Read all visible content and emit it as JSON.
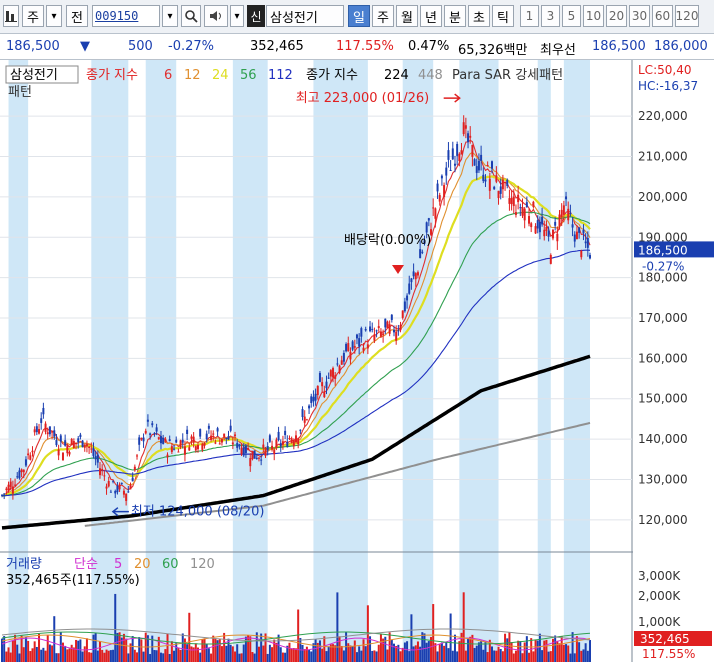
{
  "toolbar": {
    "icon_left": "chart-icon",
    "market_select": "주",
    "market_dropdown": "▾",
    "prev_label": "전",
    "stock_code": "009150",
    "search_icon": "search-icon",
    "sound_icon": "speaker-icon",
    "credit_badge": "신",
    "stock_name": "삼성전기",
    "periods": [
      "일",
      "주",
      "월",
      "년",
      "분",
      "초",
      "틱"
    ],
    "selected_period": "일",
    "intervals": [
      "1",
      "3",
      "5",
      "10",
      "20",
      "30",
      "60",
      "120"
    ]
  },
  "quote": {
    "price": "186,500",
    "direction_icon": "▼",
    "change": "500",
    "change_pct": "-0.27%",
    "volume": "352,465",
    "volume_ratio": "117.55%",
    "turnover": "0.47%",
    "amount": "65,326백만",
    "best_ask_label": "최우선",
    "best_ask": "186,500",
    "best_bid": "186,000"
  },
  "price_panel": {
    "title": "삼성전기",
    "ma_label": "종가 지수",
    "ma_periods": [
      "6",
      "12",
      "24",
      "56",
      "112"
    ],
    "ma_colors": [
      "#e03030",
      "#e09030",
      "#dede20",
      "#30a050",
      "#2030c0"
    ],
    "ma2_label": "종가 지수",
    "ma2_periods": [
      "224",
      "448"
    ],
    "ma2_colors": [
      "#000000",
      "#909090"
    ],
    "sar_label": "Para SAR 강세패턴",
    "sar_line2": "패턴",
    "lc": "LC:50,40",
    "hc": "HC:-16,37",
    "high_annotation": "최고 223,000 (01/26)",
    "low_annotation": "최저 124,000 (08/20)",
    "dividend_annotation": "배당락(0.00%)",
    "y_ticks": [
      "220,000",
      "210,000",
      "200,000",
      "190,000",
      "180,000",
      "170,000",
      "160,000",
      "150,000",
      "140,000",
      "130,000",
      "120,000"
    ],
    "current_price_label": "186,500",
    "current_change_label": "-0.27%"
  },
  "volume_panel": {
    "title": "거래량",
    "ma_label": "단순",
    "ma_periods": [
      "5",
      "20",
      "60",
      "120"
    ],
    "ma_colors": [
      "#d030d0",
      "#e09030",
      "#30a050",
      "#909090"
    ],
    "volume_text": "352,465주(117.55%)",
    "y_ticks": [
      "3,000K",
      "2,000K",
      "1,000K"
    ],
    "current_volume_label": "352,465",
    "current_ratio_label": "117.55%"
  },
  "colors": {
    "up": "#e02020",
    "down": "#1a3fb0",
    "sar_band": "#cfe7f7",
    "accent": "#4a7fd0"
  },
  "chart_data": {
    "type": "candlestick",
    "title": "삼성전기",
    "y_range": [
      115000,
      225000
    ],
    "high": {
      "value": 223000,
      "date": "01/26"
    },
    "low": {
      "value": 124000,
      "date": "08/20"
    },
    "last_close": 186500,
    "last_change_pct": -0.27,
    "close_series_anchor": [
      [
        0,
        126000
      ],
      [
        10,
        133000
      ],
      [
        18,
        145000
      ],
      [
        28,
        138000
      ],
      [
        38,
        140000
      ],
      [
        50,
        128000
      ],
      [
        58,
        127000
      ],
      [
        66,
        143000
      ],
      [
        76,
        138000
      ],
      [
        86,
        140000
      ],
      [
        96,
        141000
      ],
      [
        106,
        140000
      ],
      [
        116,
        136000
      ],
      [
        126,
        138000
      ],
      [
        136,
        142000
      ],
      [
        146,
        152000
      ],
      [
        156,
        160000
      ],
      [
        166,
        165000
      ],
      [
        174,
        166000
      ],
      [
        182,
        168000
      ],
      [
        190,
        181000
      ],
      [
        198,
        196000
      ],
      [
        205,
        207000
      ],
      [
        212,
        216000
      ],
      [
        218,
        208000
      ],
      [
        226,
        204000
      ],
      [
        234,
        199000
      ],
      [
        244,
        196000
      ],
      [
        252,
        188000
      ],
      [
        258,
        198000
      ],
      [
        264,
        190000
      ],
      [
        270,
        186500
      ]
    ],
    "ma224_anchor": [
      [
        0,
        118000
      ],
      [
        60,
        121000
      ],
      [
        120,
        126000
      ],
      [
        170,
        135000
      ],
      [
        220,
        152000
      ],
      [
        270,
        160500
      ]
    ],
    "ma448_anchor": [
      [
        38,
        118500
      ],
      [
        120,
        123500
      ],
      [
        200,
        135000
      ],
      [
        270,
        144000
      ]
    ],
    "volume_ticks_k": [
      3000,
      2000,
      1000
    ],
    "last_volume": 352465,
    "last_volume_ratio_pct": 117.55
  }
}
